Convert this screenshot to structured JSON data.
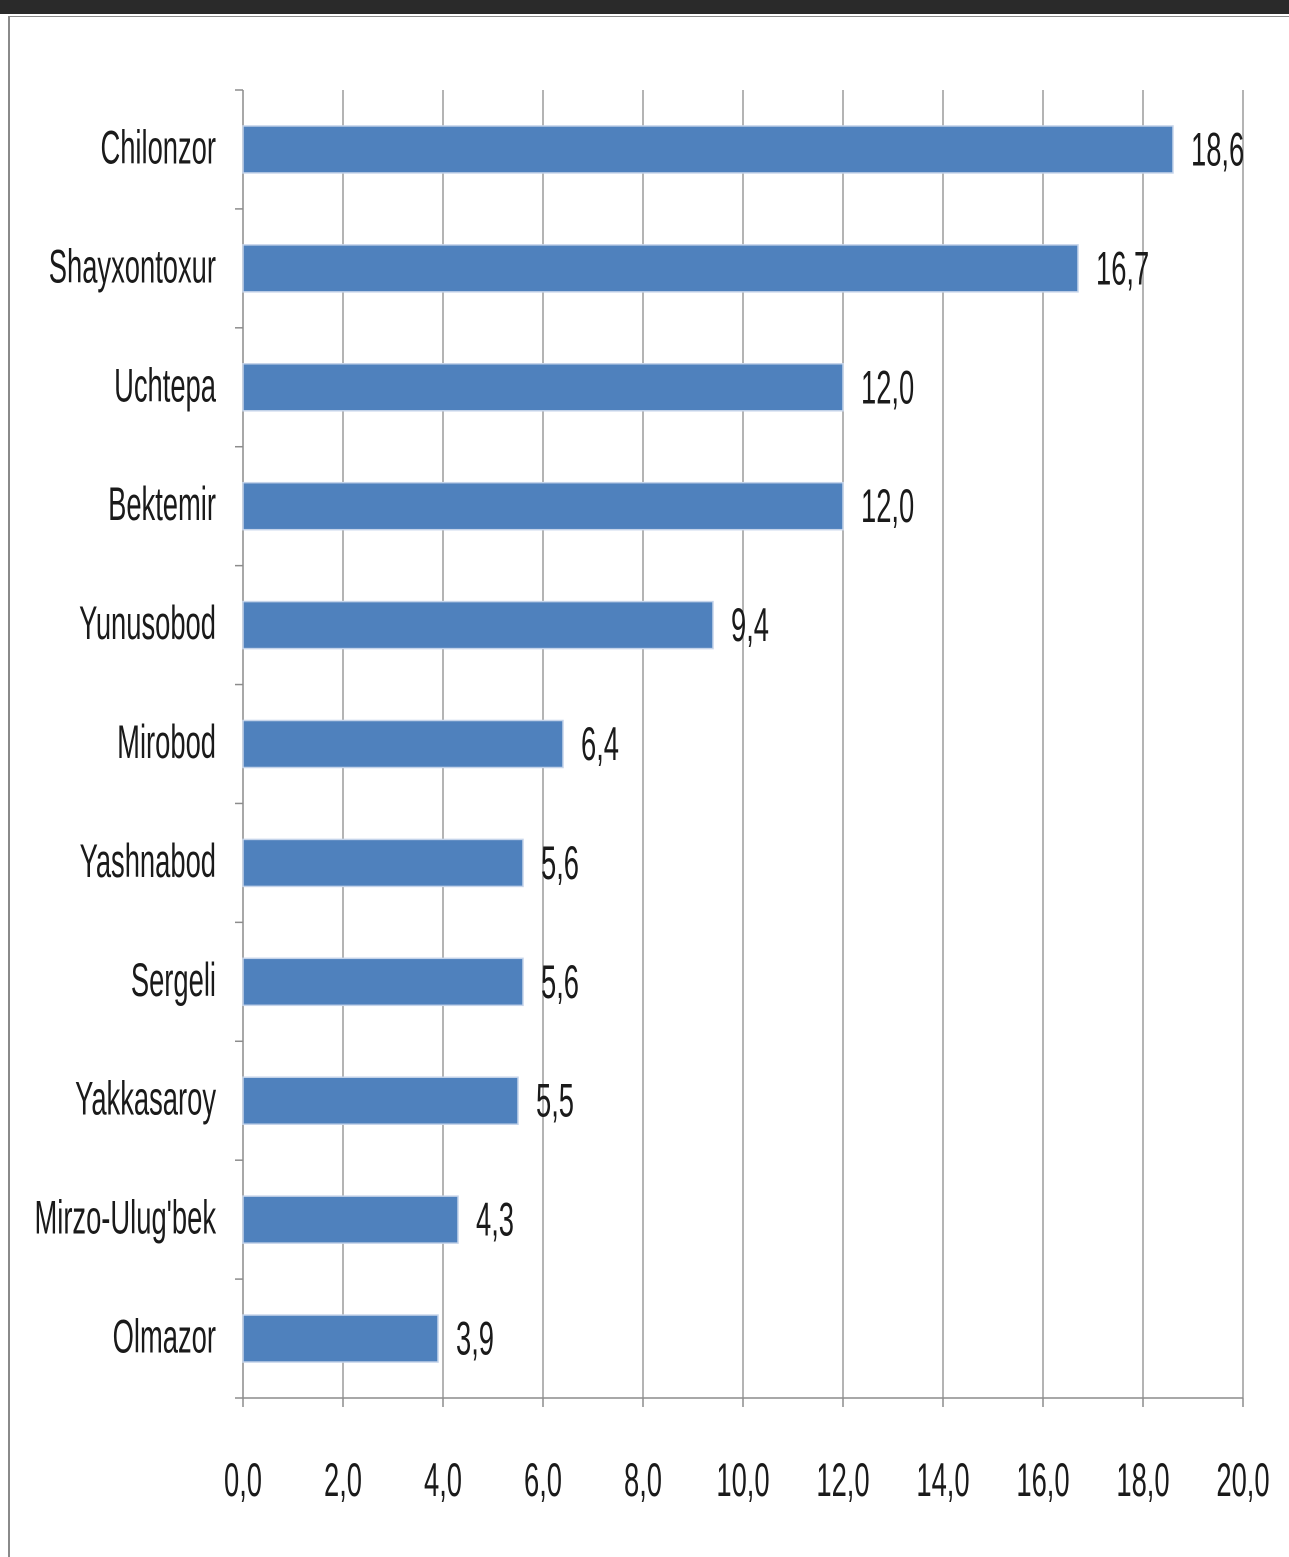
{
  "chart_data": {
    "type": "bar",
    "orientation": "horizontal",
    "categories": [
      "Chilonzor",
      "Shayxontoxur",
      "Uchtepa",
      "Bektemir",
      "Yunusobod",
      "Mirobod",
      "Yashnabod",
      "Sergeli",
      "Yakkasaroy",
      "Mirzo-Ulug'bek",
      "Olmazor"
    ],
    "values": [
      18.6,
      16.7,
      12.0,
      12.0,
      9.4,
      6.4,
      5.6,
      5.6,
      5.5,
      4.3,
      3.9
    ],
    "data_labels": [
      "18,6",
      "16,7",
      "12,0",
      "12,0",
      "9,4",
      "6,4",
      "5,6",
      "5,6",
      "5,5",
      "4,3",
      "3,9"
    ],
    "x_ticks": [
      0,
      2,
      4,
      6,
      8,
      10,
      12,
      14,
      16,
      18,
      20
    ],
    "x_tick_labels": [
      "0,0",
      "2,0",
      "4,0",
      "6,0",
      "8,0",
      "10,0",
      "12,0",
      "14,0",
      "16,0",
      "18,0",
      "20,0"
    ],
    "xlim": [
      0,
      20
    ],
    "title": "",
    "xlabel": "",
    "ylabel": "",
    "grid": "vertical",
    "legend": "none",
    "bar_color": "#4F81BD"
  }
}
